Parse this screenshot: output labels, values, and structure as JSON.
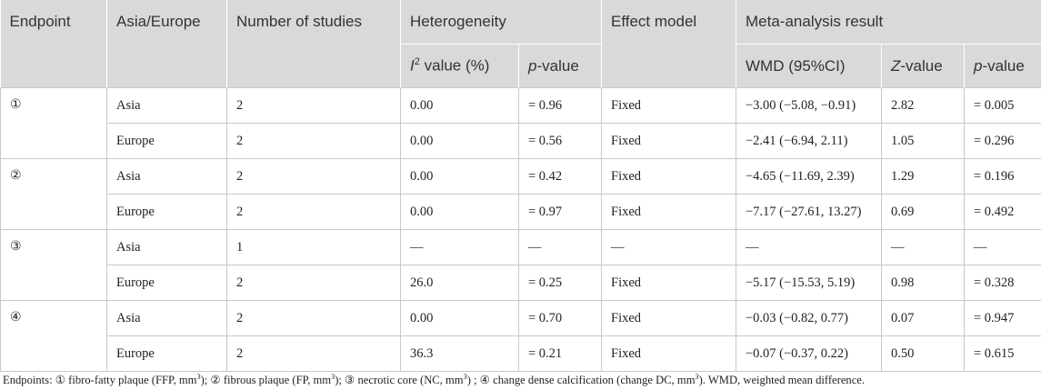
{
  "header": {
    "endpoint": "Endpoint",
    "region": "Asia/Europe",
    "studies": "Number of studies",
    "heterogeneity": "Heterogeneity",
    "effect_model": "Effect model",
    "meta_result": "Meta-analysis result",
    "i2_value_prefix": "I",
    "i2_value_sup": "2",
    "i2_value_suffix": " value (%)",
    "p_value_italic": "p",
    "p_value_rest": "-value",
    "wmd": "WMD (95%CI)",
    "z_value_italic": "Z",
    "z_value_rest": "-value"
  },
  "rows": [
    {
      "endpoint": "①",
      "region": "Asia",
      "studies": "2",
      "i2": "0.00",
      "p_het": "= 0.96",
      "model": "Fixed",
      "wmd": "−3.00 (−5.08, −0.91)",
      "z": "2.82",
      "p": "= 0.005"
    },
    {
      "endpoint": "",
      "region": "Europe",
      "studies": "2",
      "i2": "0.00",
      "p_het": "= 0.56",
      "model": "Fixed",
      "wmd": "−2.41 (−6.94, 2.11)",
      "z": "1.05",
      "p": "= 0.296"
    },
    {
      "endpoint": "②",
      "region": "Asia",
      "studies": "2",
      "i2": "0.00",
      "p_het": "= 0.42",
      "model": "Fixed",
      "wmd": "−4.65 (−11.69, 2.39)",
      "z": "1.29",
      "p": "= 0.196"
    },
    {
      "endpoint": "",
      "region": "Europe",
      "studies": "2",
      "i2": "0.00",
      "p_het": "= 0.97",
      "model": "Fixed",
      "wmd": "−7.17 (−27.61, 13.27)",
      "z": "0.69",
      "p": "= 0.492"
    },
    {
      "endpoint": "③",
      "region": "Asia",
      "studies": "1",
      "i2": "—",
      "p_het": "—",
      "model": "—",
      "wmd": "—",
      "z": "—",
      "p": "—"
    },
    {
      "endpoint": "",
      "region": "Europe",
      "studies": "2",
      "i2": "26.0",
      "p_het": "= 0.25",
      "model": "Fixed",
      "wmd": "−5.17 (−15.53, 5.19)",
      "z": "0.98",
      "p": "= 0.328"
    },
    {
      "endpoint": "④",
      "region": "Asia",
      "studies": "2",
      "i2": "0.00",
      "p_het": "= 0.70",
      "model": "Fixed",
      "wmd": "−0.03 (−0.82, 0.77)",
      "z": "0.07",
      "p": "= 0.947"
    },
    {
      "endpoint": "",
      "region": "Europe",
      "studies": "2",
      "i2": "36.3",
      "p_het": "= 0.21",
      "model": "Fixed",
      "wmd": "−0.07 (−0.37, 0.22)",
      "z": "0.50",
      "p": "= 0.615"
    }
  ],
  "footnote": {
    "t1": "Endpoints: ① fibro-fatty plaque (FFP, mm",
    "s1": "3",
    "t2": "); ② fibrous plaque (FP, mm",
    "s2": "3",
    "t3": "); ③ necrotic core (NC, mm",
    "s3": "3",
    "t4": ") ; ④ change dense calcification (change DC, mm",
    "s4": "3",
    "t5": "). WMD, weighted mean difference."
  }
}
